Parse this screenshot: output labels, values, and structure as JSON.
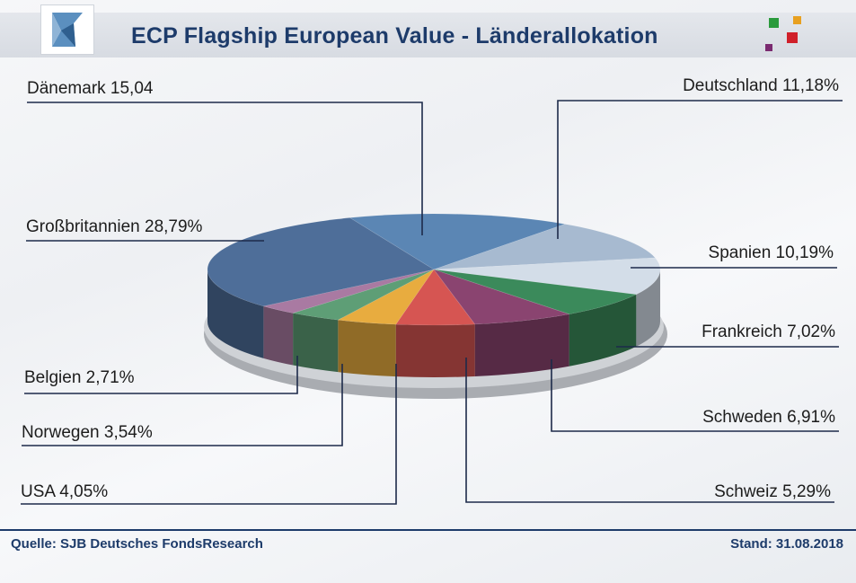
{
  "header": {
    "title": "ECP Flagship European Value - Länderallokation"
  },
  "chart_data": {
    "type": "pie",
    "title": "ECP Flagship European Value - Länderallokation",
    "slices": [
      {
        "name": "Dänemark",
        "value": 15.04,
        "label": "Dänemark 15,04",
        "color": "#5b86b4"
      },
      {
        "name": "Deutschland",
        "value": 11.18,
        "label": "Deutschland 11,18%",
        "color": "#a7bad0"
      },
      {
        "name": "Spanien",
        "value": 10.19,
        "label": "Spanien 10,19%",
        "color": "#d3dde8"
      },
      {
        "name": "Frankreich",
        "value": 7.02,
        "label": "Frankreich 7,02%",
        "color": "#3b8a5b"
      },
      {
        "name": "Schweden",
        "value": 6.91,
        "label": "Schweden 6,91%",
        "color": "#8a4470"
      },
      {
        "name": "Schweiz",
        "value": 5.29,
        "label": "Schweiz 5,29%",
        "color": "#d65552"
      },
      {
        "name": "USA",
        "value": 4.05,
        "label": "USA 4,05%",
        "color": "#e8ac3f"
      },
      {
        "name": "Norwegen",
        "value": 3.54,
        "label": "Norwegen 3,54%",
        "color": "#5e9e76"
      },
      {
        "name": "Belgien",
        "value": 2.71,
        "label": "Belgien 2,71%",
        "color": "#a97aa2"
      },
      {
        "name": "Großbritannien",
        "value": 28.79,
        "label": "Großbritannien 28,79%",
        "color": "#4e6e99"
      }
    ],
    "style": "3d-exploded-labels"
  },
  "footer": {
    "source": "Quelle: SJB Deutsches FondsResearch",
    "date": "Stand: 31.08.2018"
  },
  "colors": {
    "brand": "#1d3b6a",
    "leader_line": "#1d2a4a",
    "logo_green": "#2a9a3c",
    "logo_orange": "#e8a020",
    "logo_red": "#d0202a",
    "logo_purple": "#7a2a70"
  }
}
